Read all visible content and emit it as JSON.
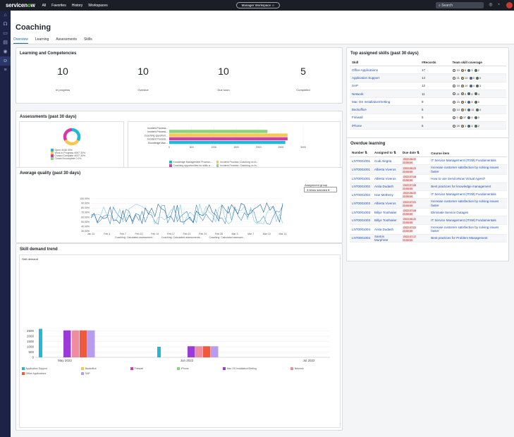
{
  "topbar": {
    "logo_a": "servicen",
    "logo_o": "o",
    "logo_b": "w",
    "nav": [
      "All",
      "Favorites",
      "History",
      "Workspaces"
    ],
    "workspace": "Manager Workspace",
    "search": "Search"
  },
  "page": {
    "title": "Coaching",
    "tabs": [
      "Overview",
      "Learning",
      "Assessments",
      "Skills"
    ]
  },
  "learning": {
    "title": "Learning and Competencies",
    "kpis": [
      {
        "value": "10",
        "label": "In progress"
      },
      {
        "value": "10",
        "label": "Overdue"
      },
      {
        "value": "10",
        "label": "Due soon"
      },
      {
        "value": "5",
        "label": "Completed"
      }
    ]
  },
  "assessments": {
    "title": "Assessments (past 30 days)",
    "donut_legend": [
      {
        "label": "Open",
        "value": "4046",
        "pct": "30%",
        "color": "#22b9d6"
      },
      {
        "label": "Work in Progress",
        "value": "4097",
        "pct": "30%",
        "color": "#f5c84e"
      },
      {
        "label": "Closed Complete",
        "value": "4037",
        "pct": "30%",
        "color": "#d63aa5"
      },
      {
        "label": "Closed Incomplete",
        "value": "0",
        "pct": "0%",
        "color": "#8ed17f"
      }
    ],
    "bar_labels": [
      "Incident Process...",
      "Incident Process...",
      "Coaching opportuni...",
      "Incident Process...",
      "Knowledge Man..."
    ],
    "bar_axis": [
      "0",
      "500",
      "1000",
      "1500",
      "2000",
      "2500",
      "3000"
    ],
    "bar_legend": [
      {
        "label": "Knowledge Management Process...",
        "color": "#22b9d6"
      },
      {
        "label": "Incident Process: Coaching on in...",
        "color": "#f5c84e"
      },
      {
        "label": "Coaching opportunities for skills a...",
        "color": "#d63aa5"
      },
      {
        "label": "Incident Process: Coaching on in...",
        "color": "#8ed17f"
      },
      {
        "label": "Incident Process: Coaching on in...",
        "color": "#9c6ad8"
      }
    ]
  },
  "quality": {
    "title": "Average quality (past 30 days)",
    "group_label": "Assignment group",
    "group_value": "3 Items selected",
    "y_ticks": [
      "100.00%",
      "90.00%",
      "80.00%",
      "70.00%",
      "60.00%",
      "50.00%",
      "40.00%",
      "30.00%"
    ],
    "x_ticks": [
      "Jan 31",
      "Feb 3",
      "Feb 7",
      "Feb 10",
      "Feb 14",
      "Feb 17",
      "Feb 21",
      "Feb 24",
      "Feb 28",
      "Mar 3",
      "Mar 7",
      "Mar 10",
      "Mar 14"
    ],
    "legend": [
      "Coaching: Calculated assessment...",
      "Coaching: Calculated assessments...",
      "Coaching: Calculated assessm..."
    ]
  },
  "skill_trend": {
    "title": "Skill demand trend",
    "inner_title": "Skill demand",
    "y_ticks": [
      "2500",
      "2000",
      "1500",
      "1000",
      "500",
      "0"
    ],
    "x_ticks": [
      "May 2022",
      "Jun 2022",
      "Jul 2022"
    ],
    "legend": [
      {
        "label": "Application Support",
        "color": "#22b9d6"
      },
      {
        "label": "Backoffice",
        "color": "#f5c84e"
      },
      {
        "label": "Firewall",
        "color": "#d63aa5"
      },
      {
        "label": "iPhone",
        "color": "#8ed17f"
      },
      {
        "label": "Mac OS Installation/Setting",
        "color": "#9c3ad8"
      },
      {
        "label": "Network",
        "color": "#f08ca0"
      },
      {
        "label": "Office Applications",
        "color": "#ef5a3c"
      },
      {
        "label": "SAP",
        "color": "#b79cf0"
      }
    ]
  },
  "chart_data": [
    {
      "type": "bar",
      "title": "Skill demand",
      "categories": [
        "May 2022",
        "Jun 2022"
      ],
      "series": [
        {
          "name": "Application Support",
          "values": [
            2700,
            1000
          ]
        },
        {
          "name": "Mac OS Installation/Setting",
          "values": [
            2550,
            1050
          ]
        },
        {
          "name": "Network",
          "values": [
            2550,
            1050
          ]
        },
        {
          "name": "Office Applications",
          "values": [
            2550,
            1050
          ]
        },
        {
          "name": "SAP",
          "values": [
            2550,
            1050
          ]
        }
      ],
      "ylim": [
        0,
        3000
      ]
    },
    {
      "type": "bar",
      "orientation": "horizontal",
      "categories": [
        "Incident Process...",
        "Incident Process...",
        "Coaching opportuni...",
        "Incident Process...",
        "Knowledge Man..."
      ],
      "values": [
        0,
        2200,
        2650,
        2650,
        2600
      ],
      "xlim": [
        0,
        3000
      ]
    }
  ],
  "top_skills": {
    "title": "Top assigned skills (past 30 days)",
    "headers": [
      "Skill",
      "#Records",
      "Team skill coverage"
    ],
    "rows": [
      {
        "skill": "Office Applications",
        "records": "17",
        "cov": [
          "10",
          "8",
          "5",
          "2"
        ]
      },
      {
        "skill": "Application Support",
        "records": "14",
        "cov": [
          "21",
          "10",
          "5",
          "0"
        ]
      },
      {
        "skill": "SAP",
        "records": "12",
        "cov": [
          "18",
          "10",
          "4",
          "3"
        ]
      },
      {
        "skill": "Network",
        "records": "11",
        "cov": [
          "21",
          "5",
          "6",
          "4"
        ]
      },
      {
        "skill": "Mac OS Installation/Setting",
        "records": "9",
        "cov": [
          "15",
          "4",
          "8",
          "0"
        ]
      },
      {
        "skill": "Backoffice",
        "records": "5",
        "cov": [
          "14",
          "5",
          "11",
          "4"
        ]
      },
      {
        "skill": "Firewall",
        "records": "5",
        "cov": [
          "0",
          "37",
          "0",
          "0"
        ]
      },
      {
        "skill": "iPhone",
        "records": "5",
        "cov": [
          "29",
          "1",
          "4",
          "2"
        ]
      }
    ]
  },
  "overdue": {
    "title": "Overdue learning",
    "headers": [
      "Number",
      "Assigned to",
      "Due date",
      "Course item"
    ],
    "rows": [
      {
        "number": "LNT0001001",
        "assigned": "Codi Alegria",
        "due": "2022-06-22 23:59:59",
        "course": "IT Service Management (ITSM) Fundamentals"
      },
      {
        "number": "LNT0001001",
        "assigned": "Alberta Viveros",
        "due": "2022-06-23 23:59:59",
        "course": "Increase customer satisfaction by solving issues faster"
      },
      {
        "number": "LNT0001001",
        "assigned": "Alberta Viveros",
        "due": "2022-07-08 23:59:59",
        "course": "How to use ServiceNow Virtual Agent?"
      },
      {
        "number": "LNT0001002",
        "assigned": "Anita Dudash",
        "due": "2022-07-08 23:59:59",
        "course": "Best practices for knowledge management"
      },
      {
        "number": "LNT0001002",
        "assigned": "Hae Metheny",
        "due": "2022-06-22 23:59:59",
        "course": "IT Service Management (ITSM) Fundamentals"
      },
      {
        "number": "LNT0001003",
        "assigned": "Alberta Viveros",
        "due": "2022-07-01 23:59:59",
        "course": "Increase customer satisfaction by solving issues faster"
      },
      {
        "number": "LNT0001003",
        "assigned": "Billye Toothaker",
        "due": "2022-07-08 23:59:59",
        "course": "Eliminate Service Outages"
      },
      {
        "number": "LNT0001003",
        "assigned": "Billye Toothaker",
        "due": "2022-06-22 23:59:59",
        "course": "IT Service Management (ITSM) Fundamentals"
      },
      {
        "number": "LNT0001004",
        "assigned": "Anita Dudash",
        "due": "2022-07-01 23:59:59",
        "course": "Increase customer satisfaction by solving issues faster"
      },
      {
        "number": "LNT0001004",
        "assigned": "Santos Murphree",
        "due": "2022-07-17 23:59:59",
        "course": "Best practices for Problem Management"
      }
    ]
  }
}
